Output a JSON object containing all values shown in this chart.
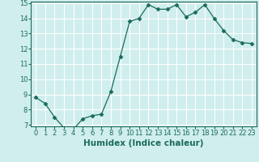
{
  "x": [
    0,
    1,
    2,
    3,
    4,
    5,
    6,
    7,
    8,
    9,
    10,
    11,
    12,
    13,
    14,
    15,
    16,
    17,
    18,
    19,
    20,
    21,
    22,
    23
  ],
  "y": [
    8.8,
    8.4,
    7.5,
    6.8,
    6.7,
    7.4,
    7.6,
    7.7,
    9.2,
    11.5,
    13.8,
    14.0,
    14.9,
    14.6,
    14.6,
    14.9,
    14.1,
    14.4,
    14.9,
    14.0,
    13.2,
    12.6,
    12.4,
    12.35
  ],
  "xlim": [
    -0.5,
    23.5
  ],
  "ylim": [
    6.9,
    15.1
  ],
  "yticks": [
    7,
    8,
    9,
    10,
    11,
    12,
    13,
    14,
    15
  ],
  "xticks": [
    0,
    1,
    2,
    3,
    4,
    5,
    6,
    7,
    8,
    9,
    10,
    11,
    12,
    13,
    14,
    15,
    16,
    17,
    18,
    19,
    20,
    21,
    22,
    23
  ],
  "xlabel": "Humidex (Indice chaleur)",
  "line_color": "#1a6b5a",
  "marker": "D",
  "marker_size": 2.5,
  "bg_color": "#d0eeee",
  "grid_color": "#ffffff",
  "tick_fontsize": 6,
  "label_fontsize": 7.5
}
